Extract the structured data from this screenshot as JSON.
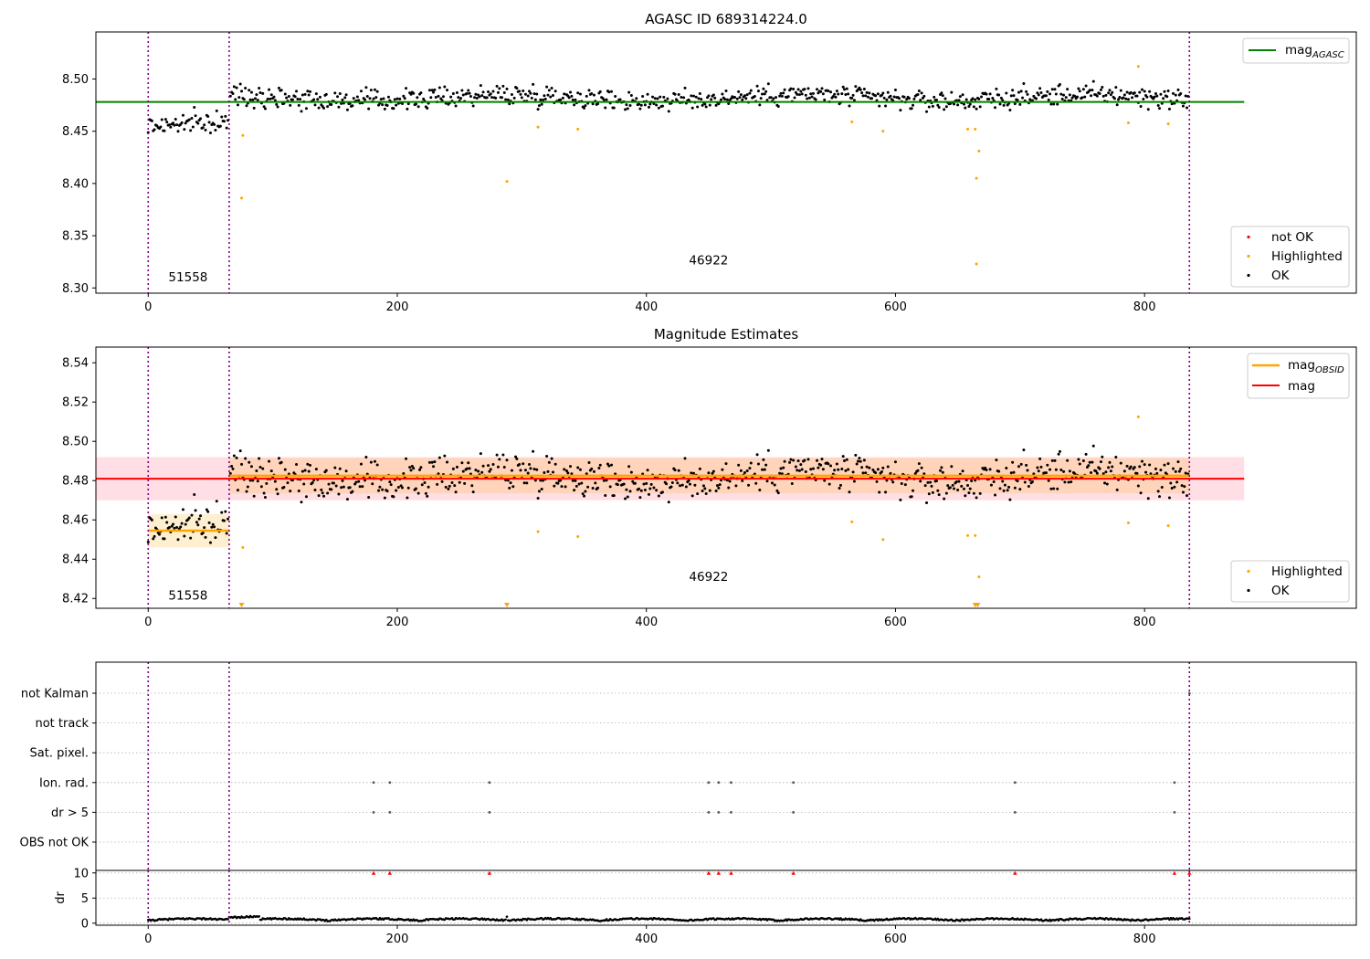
{
  "chart_data": [
    {
      "type": "scatter",
      "title": "AGASC ID 689314224.0",
      "xlabel": "",
      "ylabel": "",
      "xlim": [
        -42,
        970
      ],
      "ylim": [
        8.295,
        8.545
      ],
      "xticks": [
        "0",
        "200",
        "400",
        "600",
        "800"
      ],
      "yticks": [
        "8.30",
        "8.35",
        "8.40",
        "8.45",
        "8.50"
      ],
      "grid": false,
      "legend_upper": {
        "position": "top-right",
        "entries": [
          {
            "label": "mag",
            "sub": "AGASC",
            "color": "#008000"
          }
        ]
      },
      "legend_lower": {
        "position": "bottom-right",
        "entries": [
          {
            "label": "not OK",
            "color": "#ff0000"
          },
          {
            "label": "Highlighted",
            "color": "#ffa500"
          },
          {
            "label": "OK",
            "color": "#000000"
          }
        ]
      },
      "reference_line": {
        "name": "mag AGASC",
        "y": 8.478,
        "x": [
          -42,
          880
        ],
        "color": "#008000"
      },
      "obsid_boundaries": [
        0,
        65,
        836
      ],
      "obsid_labels": [
        {
          "text": "51558",
          "x": 32,
          "y": 8.3065
        },
        {
          "text": "46922",
          "x": 450,
          "y": 8.3225
        }
      ],
      "highlighted_points": [
        {
          "x": 76,
          "y": 8.446
        },
        {
          "x": 75,
          "y": 8.386
        },
        {
          "x": 288,
          "y": 8.402
        },
        {
          "x": 313,
          "y": 8.454
        },
        {
          "x": 345,
          "y": 8.452
        },
        {
          "x": 565,
          "y": 8.459
        },
        {
          "x": 590,
          "y": 8.45
        },
        {
          "x": 658,
          "y": 8.452
        },
        {
          "x": 664,
          "y": 8.452
        },
        {
          "x": 667,
          "y": 8.431
        },
        {
          "x": 665,
          "y": 8.405
        },
        {
          "x": 665,
          "y": 8.323
        },
        {
          "x": 787,
          "y": 8.458
        },
        {
          "x": 795,
          "y": 8.512
        },
        {
          "x": 819,
          "y": 8.457
        }
      ],
      "ok_series": {
        "name": "OK",
        "segment_1": {
          "x_range": [
            0,
            64
          ],
          "mean": 8.455,
          "spread": 0.009
        },
        "segment_2": {
          "x_range": [
            66,
            835
          ],
          "mean": 8.482,
          "spread": 0.009
        }
      }
    },
    {
      "type": "scatter",
      "title": "Magnitude Estimates",
      "xlabel": "",
      "ylabel": "",
      "xlim": [
        -42,
        970
      ],
      "ylim": [
        8.415,
        8.548
      ],
      "xticks": [
        "0",
        "200",
        "400",
        "600",
        "800"
      ],
      "yticks": [
        "8.42",
        "8.44",
        "8.46",
        "8.48",
        "8.50",
        "8.52",
        "8.54"
      ],
      "grid": false,
      "legend_upper": {
        "position": "top-right",
        "entries": [
          {
            "label": "mag",
            "sub": "OBSID",
            "color": "#ffa500"
          },
          {
            "label": "mag",
            "sub": "",
            "color": "#ff0000"
          }
        ]
      },
      "legend_lower": {
        "position": "bottom-right",
        "entries": [
          {
            "label": "Highlighted",
            "color": "#ffa500"
          },
          {
            "label": "OK",
            "color": "#000000"
          }
        ]
      },
      "mag_line": {
        "y": 8.481,
        "band": [
          8.47,
          8.492
        ],
        "x": [
          -42,
          880
        ],
        "color": "#ff0000",
        "band_color": "#ffc0cb"
      },
      "obsid_means": [
        {
          "x": [
            0,
            65
          ],
          "y": 8.4545,
          "band": [
            8.446,
            8.463
          ]
        },
        {
          "x": [
            65,
            836
          ],
          "y": 8.4825,
          "band": [
            8.4735,
            8.4915
          ]
        }
      ],
      "obsid_boundaries": [
        0,
        65,
        836
      ],
      "obsid_labels": [
        {
          "text": "51558",
          "x": 32,
          "y": 8.4195
        },
        {
          "text": "46922",
          "x": 450,
          "y": 8.429
        }
      ],
      "highlighted_points": [
        {
          "x": 76,
          "y": 8.446
        },
        {
          "x": 313,
          "y": 8.454
        },
        {
          "x": 345,
          "y": 8.4515
        },
        {
          "x": 565,
          "y": 8.459
        },
        {
          "x": 590,
          "y": 8.45
        },
        {
          "x": 658,
          "y": 8.452
        },
        {
          "x": 664,
          "y": 8.452
        },
        {
          "x": 667,
          "y": 8.431
        },
        {
          "x": 787,
          "y": 8.4585
        },
        {
          "x": 795,
          "y": 8.5125
        },
        {
          "x": 819,
          "y": 8.457
        }
      ],
      "offscale_markers_x": [
        75,
        288,
        664,
        666
      ],
      "ok_series": {
        "name": "OK",
        "segment_1": {
          "x_range": [
            0,
            64
          ],
          "mean": 8.455,
          "spread": 0.009
        },
        "segment_2": {
          "x_range": [
            66,
            835
          ],
          "mean": 8.482,
          "spread": 0.009
        }
      }
    },
    {
      "type": "scatter",
      "title": "",
      "xlabel": "",
      "ylabel": "",
      "xlim": [
        -42,
        970
      ],
      "xticks": [
        "0",
        "200",
        "400",
        "600",
        "800"
      ],
      "flag_rows": [
        "not Kalman",
        "not track",
        "Sat. pixel.",
        "Ion. rad.",
        "dr > 5",
        "OBS not OK"
      ],
      "flags": {
        "Ion. rad.": [
          181,
          194,
          274,
          450,
          458,
          468,
          518,
          696,
          824
        ],
        "dr > 5": [
          181,
          194,
          274,
          450,
          458,
          468,
          518,
          696,
          824
        ],
        "not Kalman": [
          836
        ]
      },
      "obsid_boundaries": [
        0,
        65,
        836
      ]
    },
    {
      "type": "scatter",
      "title": "",
      "xlabel": "",
      "ylabel": "dr",
      "xlim": [
        -42,
        970
      ],
      "ylim": [
        -0.4,
        10.5
      ],
      "yticks": [
        "0",
        "5",
        "10"
      ],
      "clipped_at_10_x": [
        181,
        194,
        274,
        450,
        458,
        468,
        518,
        696,
        824,
        836
      ],
      "dr_series": {
        "x_range": [
          0,
          836
        ],
        "typical": 0.4,
        "max_typical": 1.3
      },
      "obsid_boundaries": [
        0,
        65,
        836
      ]
    }
  ]
}
